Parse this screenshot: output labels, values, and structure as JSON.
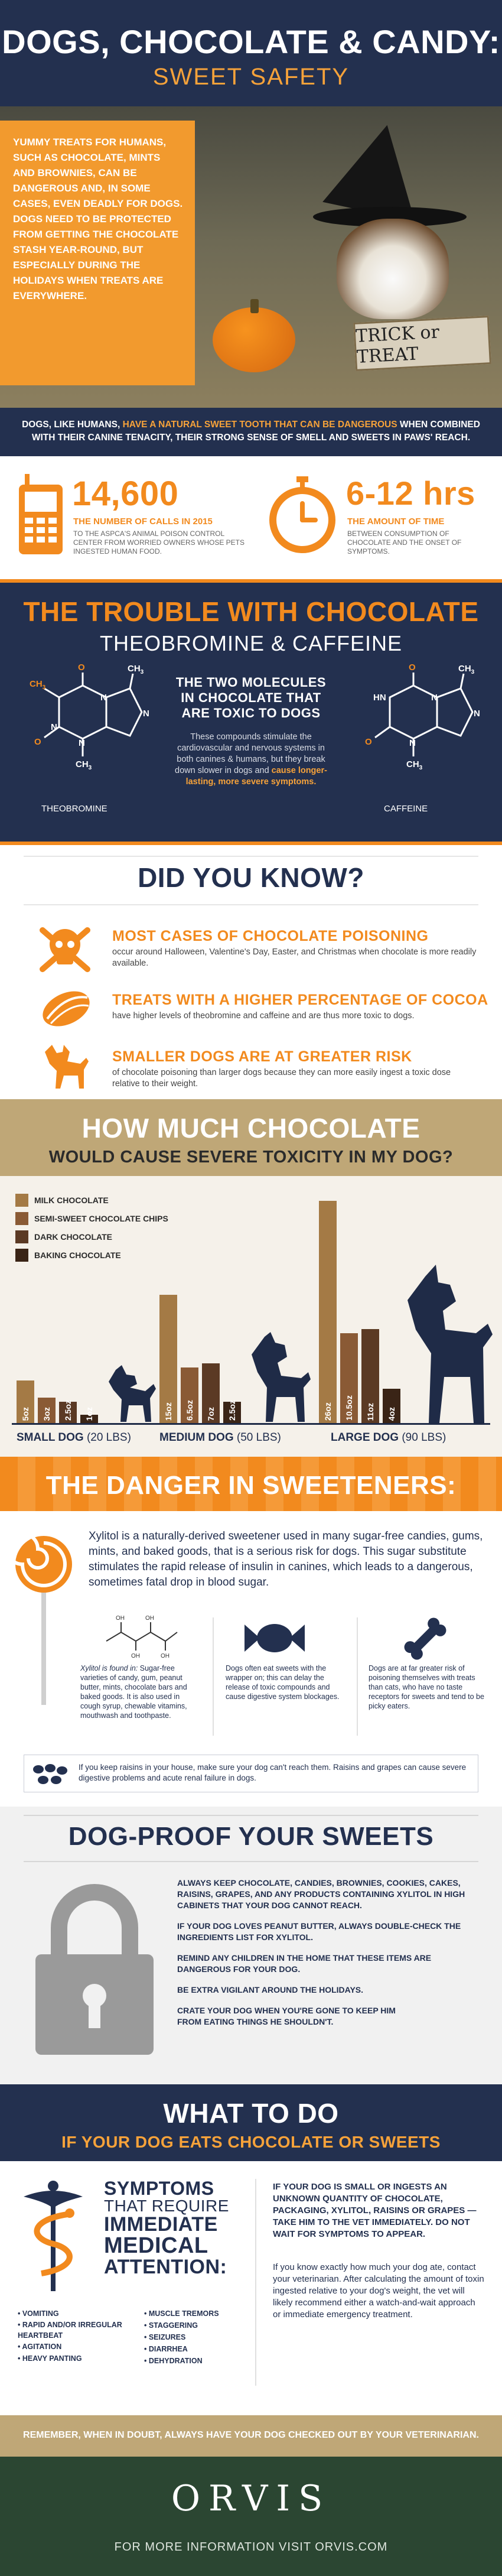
{
  "header": {
    "title": "DOGS, CHOCOLATE & CANDY:",
    "subtitle": "SWEET SAFETY"
  },
  "intro": {
    "text": "YUMMY TREATS FOR HUMANS, SUCH AS CHOCOLATE, MINTS AND BROWNIES, CAN BE DANGEROUS AND, IN SOME CASES, EVEN DEADLY FOR DOGS. DOGS NEED TO BE PROTECTED FROM GETTING THE CHOCOLATE STASH YEAR-ROUND, BUT ESPECIALLY DURING THE HOLIDAYS WHEN TREATS ARE EVERYWHERE.",
    "sign": "TRICK or TREAT"
  },
  "tagline": {
    "a": "DOGS, LIKE HUMANS, ",
    "b": "HAVE A NATURAL SWEET TOOTH THAT CAN BE DANGEROUS",
    "c": " WHEN COMBINED WITH THEIR CANINE TENACITY, THEIR STRONG SENSE OF SMELL AND SWEETS IN PAWS' REACH."
  },
  "stats": [
    {
      "num": "14,600",
      "head": "THE NUMBER OF CALLS IN 2015",
      "body": "TO THE ASPCA'S ANIMAL POISON CONTROL CENTER FROM WORRIED OWNERS WHOSE PETS INGESTED HUMAN FOOD."
    },
    {
      "num": "6-12 hrs",
      "head": "THE AMOUNT OF TIME",
      "body": "BETWEEN CONSUMPTION OF CHOCOLATE AND THE ONSET OF SYMPTOMS."
    }
  ],
  "trouble": {
    "title": "THE TROUBLE WITH CHOCOLATE",
    "subtitle": "THEOBROMINE & CAFFEINE",
    "head": "THE TWO MOLECULES IN CHOCOLATE THAT ARE TOXIC TO DOGS",
    "body": "These compounds stimulate the cardiovascular and nervous systems in both canines & humans, but they break down slower in dogs and ",
    "bodyHi": "cause longer-lasting, more severe symptoms.",
    "mol1": "THEOBROMINE",
    "mol2": "CAFFEINE",
    "atoms": {
      "ch3": "CH",
      "three": "3",
      "o": "O",
      "n": "N",
      "hn": "HN"
    }
  },
  "know": {
    "title": "DID YOU KNOW?",
    "items": [
      {
        "head": "MOST CASES OF CHOCOLATE POISONING",
        "body": "occur around Halloween, Valentine's Day, Easter, and Christmas when chocolate is more readily available."
      },
      {
        "head": "TREATS WITH A HIGHER PERCENTAGE OF COCOA",
        "body": "have higher levels of theobromine and caffeine and are thus more toxic to dogs."
      },
      {
        "head": "SMALLER DOGS ARE AT GREATER RISK",
        "body": "of chocolate poisoning than larger dogs because they can more easily ingest a toxic dose relative to their weight."
      }
    ]
  },
  "howmuch": {
    "title": "HOW MUCH CHOCOLATE",
    "subtitle": "WOULD CAUSE SEVERE TOXICITY IN MY DOG?"
  },
  "chart_data": {
    "type": "bar",
    "categories": [
      "SMALL DOG",
      "MEDIUM DOG",
      "LARGE DOG"
    ],
    "weights": [
      "(20 LBS)",
      "(50 LBS)",
      "(90 LBS)"
    ],
    "series": [
      {
        "name": "MILK CHOCOLATE",
        "values": [
          5,
          15,
          26
        ],
        "labels": [
          "5oz",
          "15oz",
          "26oz"
        ],
        "color": "#a47a45"
      },
      {
        "name": "SEMI-SWEET CHOCOLATE CHIPS",
        "values": [
          3,
          6.5,
          10.5
        ],
        "labels": [
          "3oz",
          "6.5oz",
          "10.5oz"
        ],
        "color": "#8a5a35"
      },
      {
        "name": "DARK CHOCOLATE",
        "values": [
          2.5,
          7,
          11
        ],
        "labels": [
          "2.5oz",
          "7oz",
          "11oz"
        ],
        "color": "#5b3a24"
      },
      {
        "name": "BAKING CHOCOLATE",
        "values": [
          1,
          2.5,
          4
        ],
        "labels": [
          "1oz",
          "2.5oz",
          "4oz"
        ],
        "color": "#3a2416"
      }
    ],
    "ylim": [
      0,
      27
    ]
  },
  "sweeteners": {
    "title": "THE DANGER IN SWEETENERS:",
    "intro": "Xylitol is a naturally-derived sweetener used in many sugar-free candies, gums, mints, and baked goods, that is a serious risk for dogs. This sugar substitute stimulates the rapid release of insulin in canines, which leads to a dangerous, sometimes fatal drop in blood sugar.",
    "found": "Xylitol is found in:",
    "foundBody": " Sugar-free varieties of candy, gum, peanut butter, mints, chocolate bars and baked goods. It is also used in cough syrup, chewable vitamins, mouthwash and toothpaste.",
    "wrapper": "Dogs often eat sweets with the wrapper on; this can delay the release of toxic compounds and cause digestive system blockages.",
    "risk": "Dogs are at far greater risk of poisoning themselves with treats than cats, who have no taste receptors for sweets and tend to be picky eaters.",
    "raisins": "If you keep raisins in your house, make sure your dog can't reach them. Raisins and grapes can cause severe digestive problems and acute renal failure in dogs.",
    "atoms": {
      "oh": "OH"
    }
  },
  "proof": {
    "title": "DOG-PROOF YOUR SWEETS",
    "items": [
      "ALWAYS KEEP CHOCOLATE, CANDIES, BROWNIES, COOKIES, CAKES, RAISINS, GRAPES, AND ANY PRODUCTS CONTAINING XYLITOL IN HIGH CABINETS THAT YOUR DOG CANNOT REACH.",
      "IF YOUR DOG LOVES PEANUT BUTTER, ALWAYS DOUBLE-CHECK THE INGREDIENTS LIST FOR XYLITOL.",
      "REMIND ANY CHILDREN IN THE HOME THAT THESE ITEMS ARE DANGEROUS FOR YOUR DOG.",
      "BE EXTRA VIGILANT AROUND THE HOLIDAYS.",
      "CRATE YOUR DOG WHEN YOU'RE GONE TO KEEP HIM FROM EATING THINGS HE SHOULDN'T."
    ]
  },
  "whattodo": {
    "title": "WHAT TO DO",
    "subtitle": "IF YOUR DOG EATS CHOCOLATE OR SWEETS"
  },
  "symptoms": {
    "l1": "SYMPTOMS",
    "l2": "THAT REQUIRE",
    "l3": "IMMEDIATE",
    "l4": "MEDICAL",
    "l5": "ATTENTION:",
    "col1": [
      "• VOMITING",
      "• RAPID AND/OR IRREGULAR HEARTBEAT",
      "• AGITATION",
      "• HEAVY PANTING"
    ],
    "col2": [
      "• MUSCLE TREMORS",
      "• STAGGERING",
      "• SEIZURES",
      "• DIARRHEA",
      "• DEHYDRATION"
    ],
    "advice1": "IF YOUR DOG IS SMALL OR INGESTS AN UNKNOWN QUANTITY OF CHOCOLATE, PACKAGING, XYLITOL, RAISINS OR GRAPES — TAKE HIM TO THE VET IMMEDIATELY. DO NOT WAIT FOR SYMPTOMS TO APPEAR.",
    "advice2": "If you know exactly how much your dog ate, contact your veterinarian. After calculating the amount of toxin ingested relative to your dog's weight, the vet will likely recommend either a watch-and-wait approach or immediate emergency treatment."
  },
  "remember": "REMEMBER, WHEN IN DOUBT, ALWAYS HAVE YOUR DOG CHECKED OUT BY YOUR VETERINARIAN.",
  "footer": {
    "brand": "ORVIS",
    "more": "FOR MORE INFORMATION VISIT ORVIS.COM"
  },
  "colors": {
    "navy": "#23304f",
    "orange": "#f28a1e",
    "tan": "#bfa777",
    "green": "#2b4632"
  }
}
